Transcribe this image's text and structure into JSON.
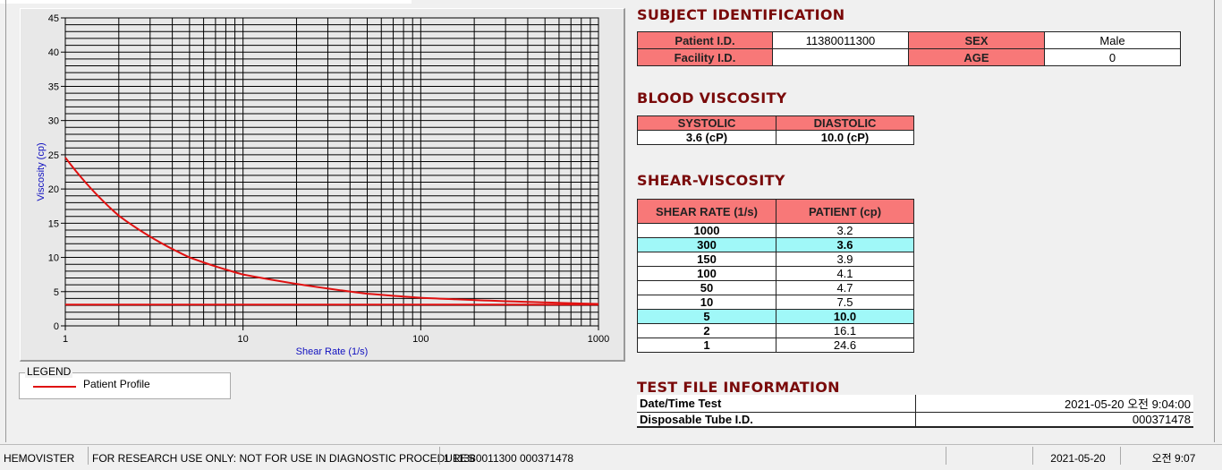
{
  "chart_data": {
    "type": "line",
    "xlabel": "Shear Rate (1/s)",
    "ylabel": "Viscosity (cp)",
    "xscale": "log",
    "xlim": [
      1,
      1000
    ],
    "ylim": [
      0,
      45
    ],
    "xticks": [
      "1",
      "10",
      "100",
      "1000"
    ],
    "yticks": [
      "0",
      "5",
      "10",
      "15",
      "20",
      "25",
      "30",
      "35",
      "40",
      "45"
    ],
    "grid": true,
    "series": [
      {
        "name": "Patient Profile",
        "color": "#e01010",
        "x": [
          1,
          2,
          5,
          10,
          50,
          100,
          150,
          300,
          1000
        ],
        "y": [
          24.6,
          16.1,
          10.0,
          7.5,
          4.7,
          4.1,
          3.9,
          3.6,
          3.2
        ]
      },
      {
        "color": "#e01010",
        "x": [
          1,
          1000
        ],
        "y": [
          3.1,
          3.1
        ]
      }
    ]
  },
  "legend": {
    "title": "LEGEND",
    "items": [
      {
        "label": "Patient Profile",
        "color": "#e01010"
      }
    ]
  },
  "subject": {
    "title": "SUBJECT IDENTIFICATION",
    "patient_id_label": "Patient I.D.",
    "patient_id": "11380011300",
    "sex_label": "SEX",
    "sex": "Male",
    "facility_label": "Facility I.D.",
    "facility": "",
    "age_label": "AGE",
    "age": "0"
  },
  "blood": {
    "title": "BLOOD VISCOSITY",
    "systolic_label": "SYSTOLIC",
    "diastolic_label": "DIASTOLIC",
    "systolic": "3.6 (cP)",
    "diastolic": "10.0 (cP)"
  },
  "shear": {
    "title": "SHEAR-VISCOSITY",
    "col1": "SHEAR RATE (1/s)",
    "col2": "PATIENT (cp)",
    "rows": [
      {
        "rate": "1000",
        "val": "3.2"
      },
      {
        "rate": "300",
        "val": "3.6",
        "hl": true
      },
      {
        "rate": "150",
        "val": "3.9"
      },
      {
        "rate": "100",
        "val": "4.1"
      },
      {
        "rate": "50",
        "val": "4.7"
      },
      {
        "rate": "10",
        "val": "7.5"
      },
      {
        "rate": "5",
        "val": "10.0",
        "hl": true
      },
      {
        "rate": "2",
        "val": "16.1"
      },
      {
        "rate": "1",
        "val": "24.6"
      }
    ]
  },
  "testfile": {
    "title": "TEST FILE INFORMATION",
    "date_label": "Date/Time Test",
    "date": "2021-05-20  오전 9:04:00",
    "tube_label": "Disposable Tube I.D.",
    "tube": "000371478"
  },
  "status": {
    "app": "HEMOVISTER",
    "notice": "FOR RESEARCH USE ONLY: NOT FOR USE IN DIAGNOSTIC PROCEDURES",
    "record": "1  11380011300  000371478",
    "empty": "",
    "date": "2021-05-20",
    "time": "오전 9:07"
  },
  "colors": {
    "header_bg": "#f87878",
    "highlight": "#a0f8f8",
    "title": "#7a0a0a"
  }
}
